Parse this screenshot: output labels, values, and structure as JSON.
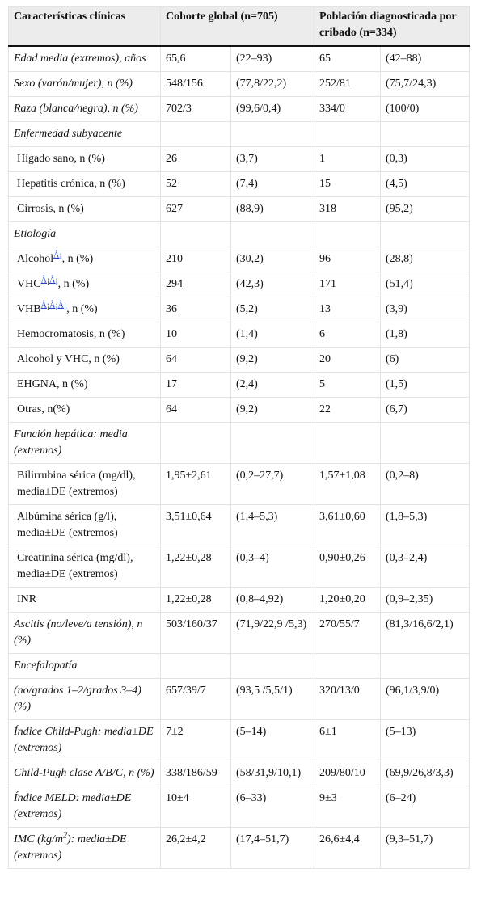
{
  "table": {
    "header": [
      "Características clínicas",
      "Cohorte global (n=705)",
      "Población diagnosticada por cribado (n=334)"
    ],
    "rows": [
      {
        "label": "Edad media (extremos), años",
        "italic": true,
        "values": [
          "65,6",
          "(22–93)",
          "65",
          "(42–88)"
        ]
      },
      {
        "label": "Sexo (varón/mujer), n (%)",
        "italic": true,
        "values": [
          "548/156",
          "(77,8/22,2)",
          "252/81",
          "(75,7/24,3)"
        ]
      },
      {
        "label": "Raza (blanca/negra), n (%)",
        "italic": true,
        "values": [
          "702/3",
          "(99,6/0,4)",
          "334/0",
          "(100/0)"
        ]
      },
      {
        "label": "Enfermedad subyacente",
        "italic": true,
        "values": []
      },
      {
        "label": "Hígado sano, n (%)",
        "values": [
          "26",
          "(3,7)",
          "1",
          "(0,3)"
        ]
      },
      {
        "label": "Hepatitis crónica, n (%)",
        "values": [
          "52",
          "(7,4)",
          "15",
          "(4,5)"
        ]
      },
      {
        "label": "Cirrosis, n (%)",
        "values": [
          "627",
          "(88,9)",
          "318",
          "(95,2)"
        ]
      },
      {
        "label": "Etiología",
        "italic": true,
        "values": []
      },
      {
        "label": "Alcohol",
        "sup": "Â¡",
        "label_after": ", n (%)",
        "values": [
          "210",
          "(30,2)",
          "96",
          "(28,8)"
        ]
      },
      {
        "label": "VHC",
        "sup": "Â¡Â¡",
        "label_after": ", n (%)",
        "values": [
          "294",
          "(42,3)",
          "171",
          "(51,4)"
        ]
      },
      {
        "label": "VHB",
        "sup": "Â¡Â¡Â¡",
        "label_after": ", n (%)",
        "values": [
          "36",
          "(5,2)",
          "13",
          "(3,9)"
        ]
      },
      {
        "label": "Hemocromatosis, n (%)",
        "values": [
          "10",
          "(1,4)",
          "6",
          "(1,8)"
        ]
      },
      {
        "label": "Alcohol y VHC, n (%)",
        "values": [
          "64",
          "(9,2)",
          "20",
          "(6)"
        ]
      },
      {
        "label": "EHGNA, n (%)",
        "values": [
          "17",
          "(2,4)",
          "5",
          "(1,5)"
        ]
      },
      {
        "label": "Otras, n(%)",
        "values": [
          "64",
          "(9,2)",
          "22",
          "(6,7)"
        ]
      },
      {
        "label": "Función hepática: media (extremos)",
        "italic": true,
        "values": []
      },
      {
        "label": "Bilirrubina sérica (mg/dl), media±DE (extremos)",
        "values": [
          "1,95±2,61",
          "(0,2–27,7)",
          "1,57±1,08",
          "(0,2–8)"
        ]
      },
      {
        "label": "Albúmina sérica (g/l), media±DE (extremos)",
        "values": [
          "3,51±0,64",
          "(1,4–5,3)",
          "3,61±0,60",
          "(1,8–5,3)"
        ]
      },
      {
        "label": "Creatinina sérica (mg/dl), media±DE (extremos)",
        "values": [
          "1,22±0,28",
          "(0,3–4)",
          "0,90±0,26",
          "(0,3–2,4)"
        ]
      },
      {
        "label": "INR",
        "values": [
          "1,22±0,28",
          "(0,8–4,92)",
          "1,20±0,20",
          "(0,9–2,35)"
        ]
      },
      {
        "label": "Ascitis (no/leve/a tensión), n (%)",
        "italic": true,
        "values": [
          "503/160/37",
          "(71,9/22,9 /5,3)",
          "270/55/7",
          "(81,3/16,6/2,1)"
        ]
      },
      {
        "label": "Encefalopatía",
        "italic": true,
        "values": []
      },
      {
        "label": "(no/grados 1–2/grados 3–4) (%)",
        "italic": true,
        "values": [
          "657/39/7",
          "(93,5 /5,5/1)",
          "320/13/0",
          "(96,1/3,9/0)"
        ]
      },
      {
        "label": "Índice Child-Pugh: media±DE (extremos)",
        "italic": true,
        "values": [
          "7±2",
          "(5–14)",
          "6±1",
          "(5–13)"
        ]
      },
      {
        "label": "Child-Pugh clase A/B/C, n (%)",
        "italic": true,
        "values": [
          "338/186/59",
          "(58/31,9/10,1)",
          "209/80/10",
          "(69,9/26,8/3,3)"
        ]
      },
      {
        "label": "Índice MELD: media±DE (extremos)",
        "italic": true,
        "values": [
          "10±4",
          "(6–33)",
          "9±3",
          "(6–24)"
        ]
      },
      {
        "label": "IMC (kg/m",
        "sup": "2",
        "label_after": "): media±DE (extremos)",
        "italic": true,
        "values": [
          "26,2±4,2",
          "(17,4–51,7)",
          "26,6±4,4",
          "(9,3–51,7)"
        ]
      }
    ]
  }
}
